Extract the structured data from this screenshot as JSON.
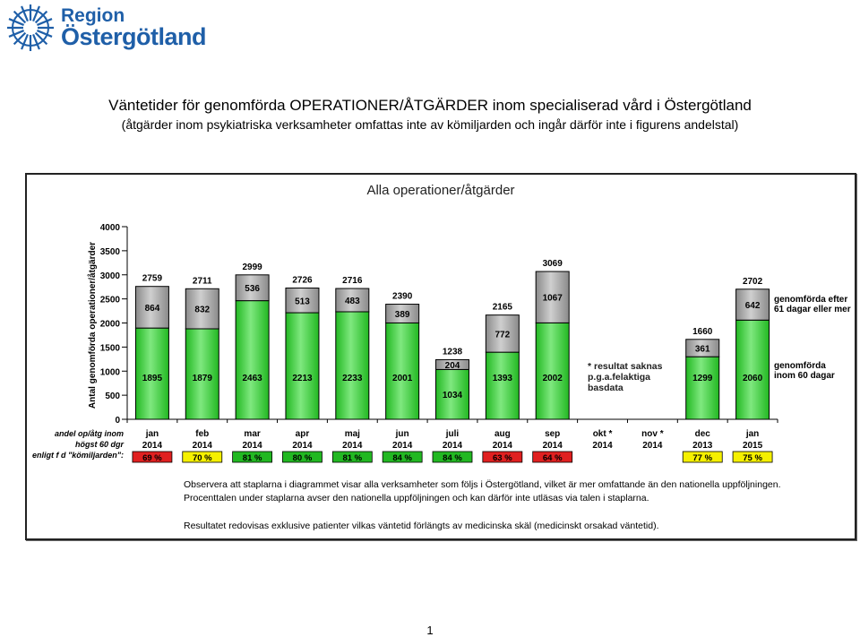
{
  "header": {
    "logo_line1": "Region",
    "logo_line2": "Östergötland",
    "title": "Väntetider för genomförda OPERATIONER/ÅTGÄRDER inom specialiserad vård i Östergötland",
    "subtitle": "(åtgärder inom psykiatriska verksamheter omfattas inte av kömiljarden och ingår därför inte i figurens andelstal)"
  },
  "notes": {
    "line1": "Observera att staplarna i diagrammet visar alla verksamheter som följs i Östergötland, vilket är mer omfattande än den nationella uppföljningen.",
    "line2": "Procenttalen under staplarna avser den nationella uppföljningen och kan därför inte utläsas via talen i staplarna.",
    "line3": "Resultatet redovisas exklusive patienter vilkas väntetid förlängts av medicinska skäl (medicinskt  orsakad väntetid)."
  },
  "page_number": "1",
  "colors": {
    "green": "#22b822",
    "green_light": "#7fe87f",
    "gray": "#8a8a8a",
    "gray_light": "#cfcfcf",
    "pct_red": "#e02020",
    "pct_yellow": "#f5f000",
    "axis": "#000000"
  },
  "chart_data": {
    "type": "bar",
    "stacked": true,
    "title": "Alla operationer/åtgärder",
    "ylabel": "Antal genomförda operationer/åtgärder",
    "ylim": [
      0,
      4000
    ],
    "yticks": [
      0,
      500,
      1000,
      1500,
      2000,
      2500,
      3000,
      3500,
      4000
    ],
    "categories": [
      {
        "month": "jan",
        "year": "2014"
      },
      {
        "month": "feb",
        "year": "2014"
      },
      {
        "month": "mar",
        "year": "2014"
      },
      {
        "month": "apr",
        "year": "2014"
      },
      {
        "month": "maj",
        "year": "2014"
      },
      {
        "month": "jun",
        "year": "2014"
      },
      {
        "month": "juli",
        "year": "2014"
      },
      {
        "month": "aug",
        "year": "2014"
      },
      {
        "month": "sep",
        "year": "2014"
      },
      {
        "month": "okt *",
        "year": "2014"
      },
      {
        "month": "nov *",
        "year": "2014"
      },
      {
        "month": "dec",
        "year": "2013"
      },
      {
        "month": "jan",
        "year": "2015"
      }
    ],
    "series": [
      {
        "name": "genomförda inom 60 dagar",
        "values": [
          1895,
          1879,
          2463,
          2213,
          2233,
          2001,
          1034,
          1393,
          2002,
          null,
          null,
          1299,
          2060
        ]
      },
      {
        "name": "genomförda efter 61 dagar eller mer",
        "values": [
          864,
          832,
          536,
          513,
          483,
          389,
          204,
          772,
          1067,
          null,
          null,
          361,
          642
        ]
      }
    ],
    "totals": [
      2759,
      2711,
      2999,
      2726,
      2716,
      2390,
      1238,
      2165,
      3069,
      null,
      null,
      1660,
      2702
    ],
    "percent_row_label": [
      "andel op/åtg inom",
      "högst 60 dgr",
      "enligt  f d \"kömiljarden\":"
    ],
    "percentages": [
      "69 %",
      "70 %",
      "81 %",
      "80 %",
      "81 %",
      "84 %",
      "84 %",
      "63 %",
      "64 %",
      null,
      null,
      "77 %",
      "75 %"
    ],
    "percent_status": [
      "red",
      "yellow",
      "green",
      "green",
      "green",
      "green",
      "green",
      "red",
      "red",
      null,
      null,
      "yellow",
      "yellow"
    ],
    "missing_note": [
      "* resultat saknas",
      "p.g.a.felaktiga",
      "basdata"
    ],
    "legend_top": [
      "genomförda efter",
      "61 dagar eller mer"
    ],
    "legend_bottom": [
      "genomförda",
      "inom 60 dagar"
    ]
  }
}
